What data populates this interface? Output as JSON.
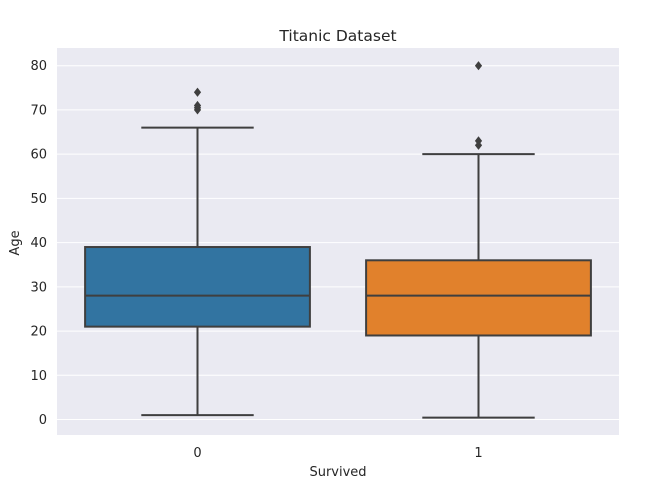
{
  "chart_data": {
    "type": "box",
    "title": "Titanic Dataset",
    "xlabel": "Survived",
    "ylabel": "Age",
    "ylim": [
      -3.5,
      84
    ],
    "yticks": [
      0,
      10,
      20,
      30,
      40,
      50,
      60,
      70,
      80
    ],
    "grid": true,
    "background": "#eaeaf2",
    "categories": [
      "0",
      "1"
    ],
    "boxes": [
      {
        "category": "0",
        "color": "#3274a1",
        "whisker_low": 1,
        "q1": 21,
        "median": 28,
        "q3": 39,
        "whisker_high": 66,
        "outliers": [
          70,
          70.5,
          71,
          74
        ]
      },
      {
        "category": "1",
        "color": "#e1812c",
        "whisker_low": 0.42,
        "q1": 19,
        "median": 28,
        "q3": 36,
        "whisker_high": 60,
        "outliers": [
          62,
          63,
          80
        ]
      }
    ]
  }
}
